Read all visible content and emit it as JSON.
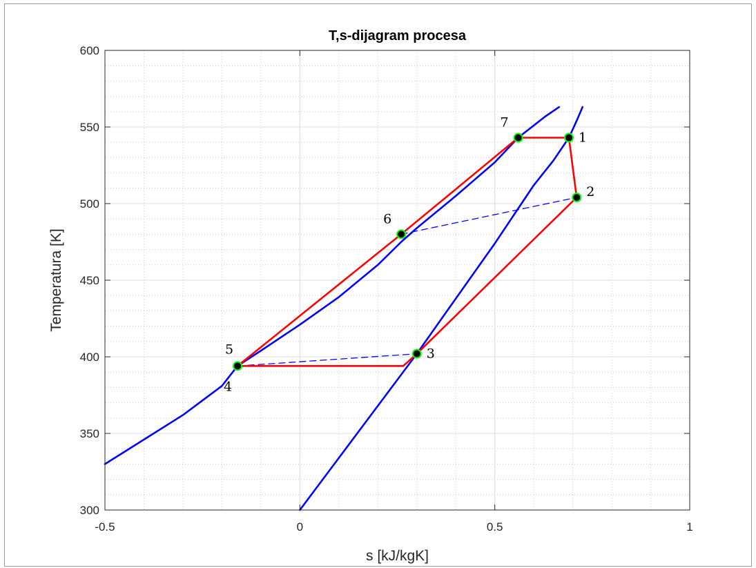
{
  "chart_data": {
    "type": "line",
    "title": "T,s-dijagram procesa",
    "xlabel": "s [kJ/kgK]",
    "ylabel": "Temperatura [K]",
    "xlim": [
      -0.5,
      1
    ],
    "ylim": [
      300,
      600
    ],
    "xticks": [
      {
        "value": -0.5,
        "label": "-0.5"
      },
      {
        "value": 0,
        "label": "0"
      },
      {
        "value": 0.5,
        "label": "0.5"
      },
      {
        "value": 1,
        "label": "1"
      }
    ],
    "yticks": [
      {
        "value": 300,
        "label": "300"
      },
      {
        "value": 350,
        "label": "350"
      },
      {
        "value": 400,
        "label": "400"
      },
      {
        "value": 450,
        "label": "450"
      },
      {
        "value": 500,
        "label": "500"
      },
      {
        "value": 550,
        "label": "550"
      },
      {
        "value": 600,
        "label": "600"
      }
    ],
    "x_minor_step": 0.1,
    "y_minor_step": 10,
    "grid": true,
    "colors": {
      "saturation": "#0000ff",
      "cycle": "#ff0000",
      "reference": "#0000ff",
      "marker_fill": "#000000",
      "marker_edge": "#00ff00"
    },
    "series": [
      {
        "kind": "saturation-liquid",
        "style": "solid",
        "x": [
          -0.5,
          -0.4,
          -0.3,
          -0.2,
          -0.16,
          -0.1,
          0.0,
          0.1,
          0.2,
          0.26,
          0.3,
          0.4,
          0.5,
          0.56,
          0.6,
          0.63,
          0.665
        ],
        "y": [
          330,
          346,
          362,
          381,
          394,
          404,
          421,
          439,
          460,
          475,
          484,
          505,
          527,
          543,
          551,
          557,
          563
        ]
      },
      {
        "kind": "saturation-vapor",
        "style": "solid",
        "x": [
          0.0,
          0.1,
          0.2,
          0.3,
          0.4,
          0.5,
          0.6,
          0.65,
          0.69,
          0.71,
          0.72,
          0.725
        ],
        "y": [
          300,
          334,
          368,
          402,
          438,
          474,
          512,
          528,
          543,
          554,
          560,
          563
        ]
      },
      {
        "kind": "cycle",
        "style": "solid",
        "x": [
          0.56,
          0.69,
          0.71,
          0.3,
          0.265,
          -0.16,
          0.26,
          0.56
        ],
        "y": [
          543,
          543,
          504,
          402,
          394,
          394,
          480,
          543
        ]
      },
      {
        "kind": "reference",
        "style": "dashed",
        "x": [
          0.26,
          0.71
        ],
        "y": [
          480,
          504
        ]
      },
      {
        "kind": "reference",
        "style": "dashed",
        "x": [
          -0.16,
          0.3
        ],
        "y": [
          394,
          402
        ]
      }
    ],
    "points": [
      {
        "label": "1",
        "x": 0.69,
        "y": 543,
        "label_pos": "right"
      },
      {
        "label": "2",
        "x": 0.71,
        "y": 504,
        "label_pos": "upper-right"
      },
      {
        "label": "3",
        "x": 0.3,
        "y": 402,
        "label_pos": "right"
      },
      {
        "label": "4",
        "x": -0.16,
        "y": 394,
        "label_pos": "below-left"
      },
      {
        "label": "5",
        "x": -0.16,
        "y": 394,
        "label_pos": "above-left"
      },
      {
        "label": "6",
        "x": 0.26,
        "y": 480,
        "label_pos": "upper-left"
      },
      {
        "label": "7",
        "x": 0.56,
        "y": 543,
        "label_pos": "upper-left"
      }
    ]
  }
}
